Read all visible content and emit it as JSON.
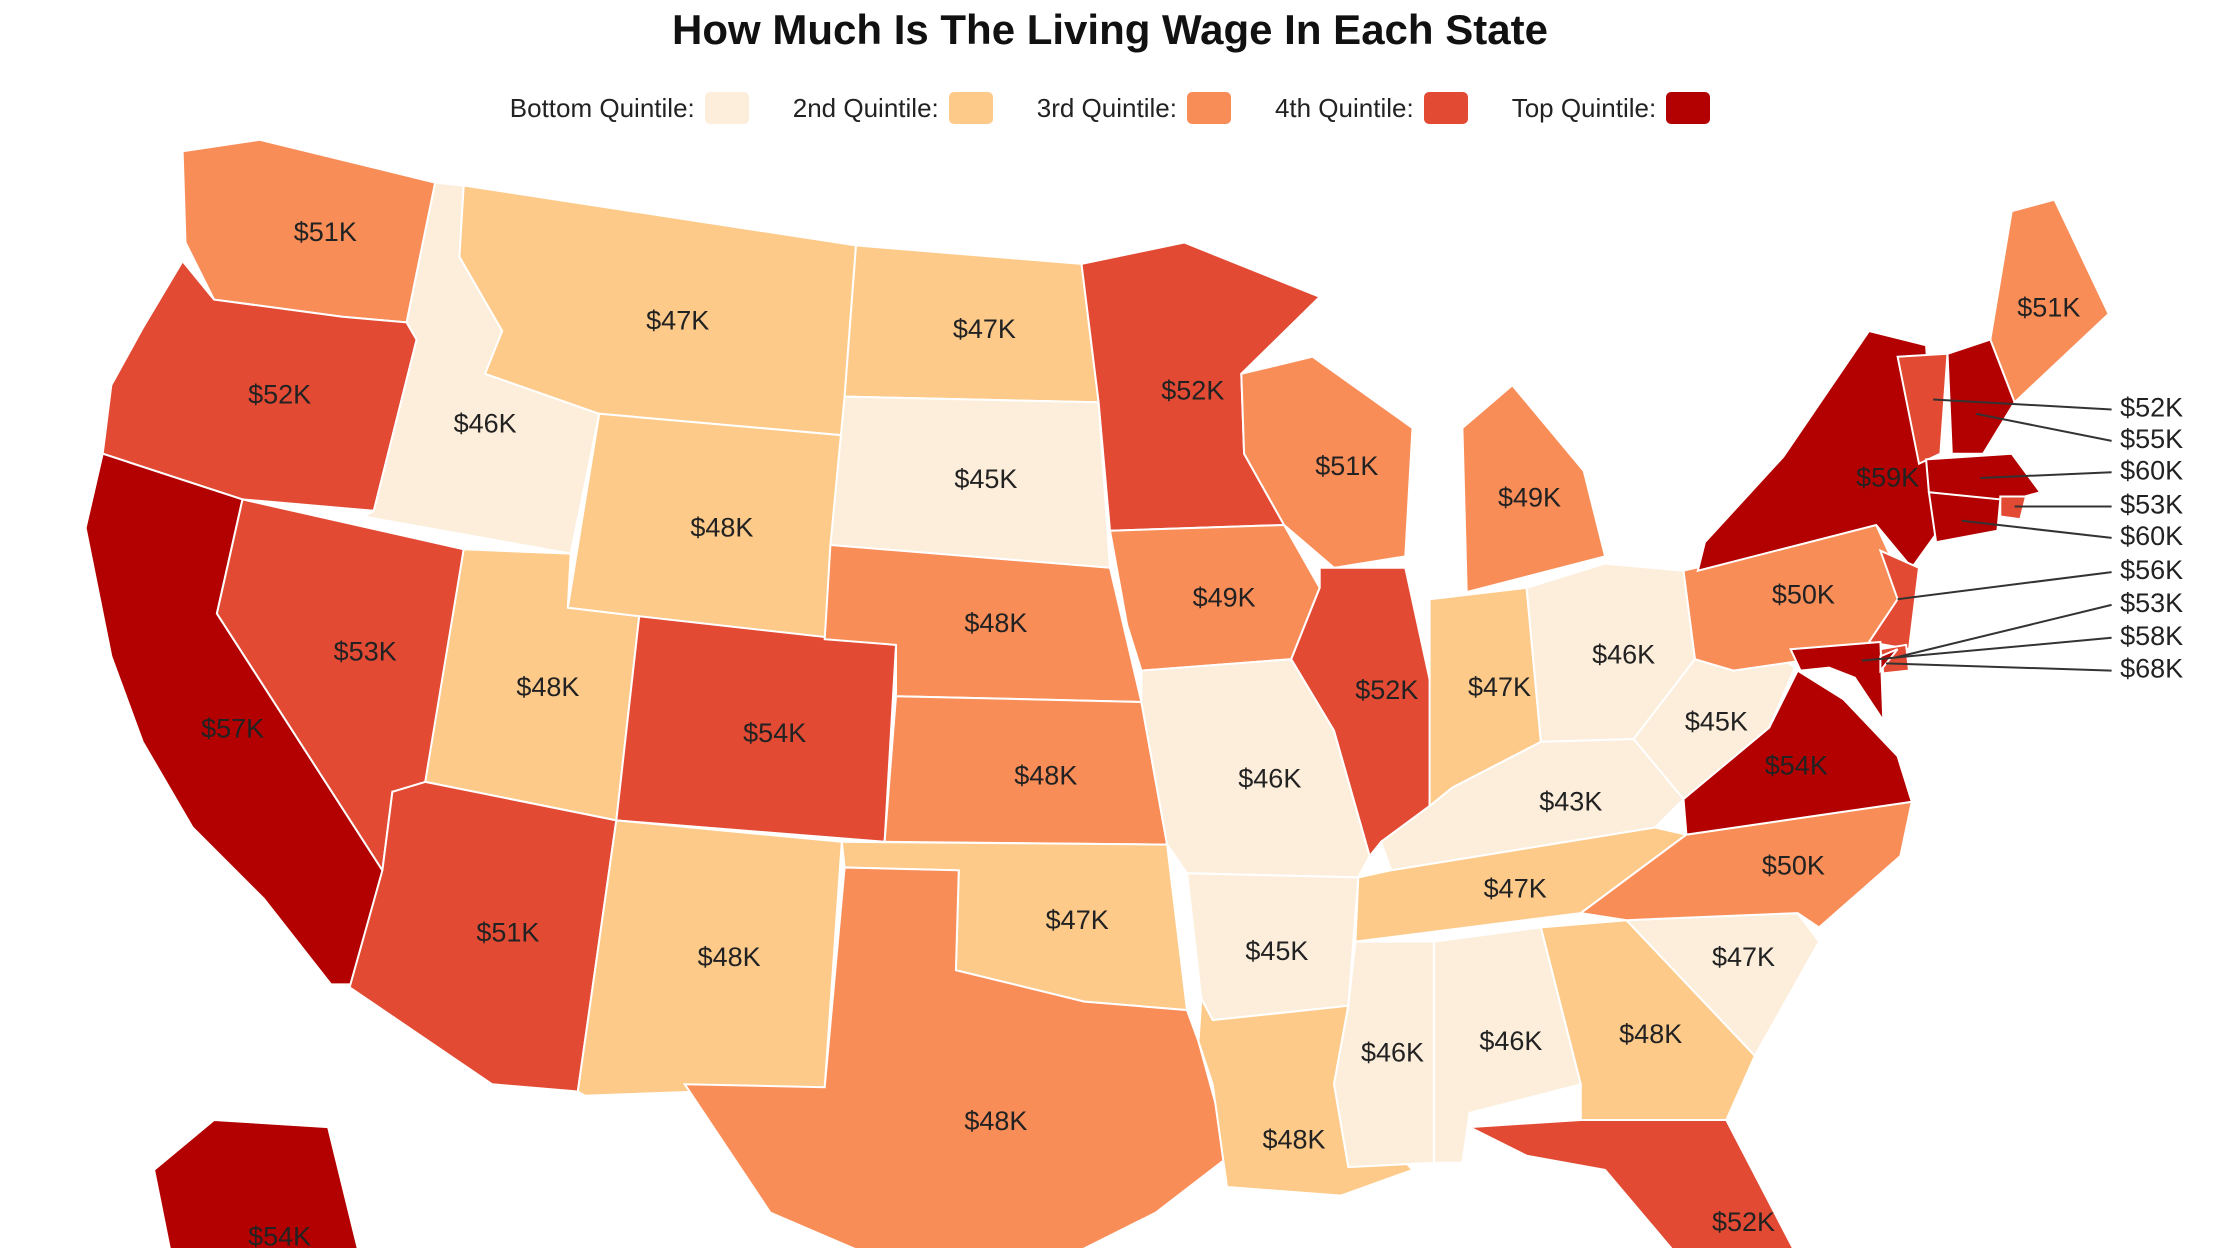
{
  "title": "How Much Is The Living Wage In Each State",
  "legend": [
    {
      "label": "Bottom Quintile:",
      "color": "#fdeedb"
    },
    {
      "label": "2nd Quintile:",
      "color": "#fdca8a"
    },
    {
      "label": "3rd Quintile:",
      "color": "#f98d58"
    },
    {
      "label": "4th Quintile:",
      "color": "#e24a33"
    },
    {
      "label": "Top Quintile:",
      "color": "#b30000"
    }
  ],
  "states": [
    {
      "state": "WA",
      "value": "$51K",
      "quintile": 3
    },
    {
      "state": "OR",
      "value": "$52K",
      "quintile": 4
    },
    {
      "state": "CA",
      "value": "$57K",
      "quintile": 5
    },
    {
      "state": "ID",
      "value": "$46K",
      "quintile": 1
    },
    {
      "state": "NV",
      "value": "$53K",
      "quintile": 4
    },
    {
      "state": "MT",
      "value": "$47K",
      "quintile": 2
    },
    {
      "state": "WY",
      "value": "$48K",
      "quintile": 2
    },
    {
      "state": "UT",
      "value": "$48K",
      "quintile": 2
    },
    {
      "state": "AZ",
      "value": "$51K",
      "quintile": 4
    },
    {
      "state": "CO",
      "value": "$54K",
      "quintile": 4
    },
    {
      "state": "NM",
      "value": "$48K",
      "quintile": 2
    },
    {
      "state": "ND",
      "value": "$47K",
      "quintile": 2
    },
    {
      "state": "SD",
      "value": "$45K",
      "quintile": 1
    },
    {
      "state": "NE",
      "value": "$48K",
      "quintile": 3
    },
    {
      "state": "KS",
      "value": "$48K",
      "quintile": 3
    },
    {
      "state": "OK",
      "value": "$47K",
      "quintile": 2
    },
    {
      "state": "TX",
      "value": "$48K",
      "quintile": 3
    },
    {
      "state": "MN",
      "value": "$52K",
      "quintile": 4
    },
    {
      "state": "IA",
      "value": "$49K",
      "quintile": 3
    },
    {
      "state": "MO",
      "value": "$46K",
      "quintile": 1
    },
    {
      "state": "AR",
      "value": "$45K",
      "quintile": 1
    },
    {
      "state": "LA",
      "value": "$48K",
      "quintile": 2
    },
    {
      "state": "WI",
      "value": "$51K",
      "quintile": 3
    },
    {
      "state": "IL",
      "value": "$52K",
      "quintile": 4
    },
    {
      "state": "MI",
      "value": "$49K",
      "quintile": 3
    },
    {
      "state": "IN",
      "value": "$47K",
      "quintile": 2
    },
    {
      "state": "OH",
      "value": "$46K",
      "quintile": 1
    },
    {
      "state": "KY",
      "value": "$43K",
      "quintile": 1
    },
    {
      "state": "TN",
      "value": "$47K",
      "quintile": 2
    },
    {
      "state": "MS",
      "value": "$46K",
      "quintile": 1
    },
    {
      "state": "AL",
      "value": "$46K",
      "quintile": 1
    },
    {
      "state": "GA",
      "value": "$48K",
      "quintile": 2
    },
    {
      "state": "FL",
      "value": "$52K",
      "quintile": 4
    },
    {
      "state": "SC",
      "value": "$47K",
      "quintile": 1
    },
    {
      "state": "NC",
      "value": "$50K",
      "quintile": 3
    },
    {
      "state": "VA",
      "value": "$54K",
      "quintile": 5
    },
    {
      "state": "WV",
      "value": "$45K",
      "quintile": 1
    },
    {
      "state": "PA",
      "value": "$50K",
      "quintile": 3
    },
    {
      "state": "NY",
      "value": "$59K",
      "quintile": 5
    },
    {
      "state": "ME",
      "value": "$51K",
      "quintile": 3
    },
    {
      "state": "AK",
      "value": "$54K",
      "quintile": 5
    }
  ],
  "callouts": [
    "$52K",
    "$55K",
    "$60K",
    "$53K",
    "$60K",
    "$56K",
    "$53K",
    "$58K",
    "$68K"
  ]
}
